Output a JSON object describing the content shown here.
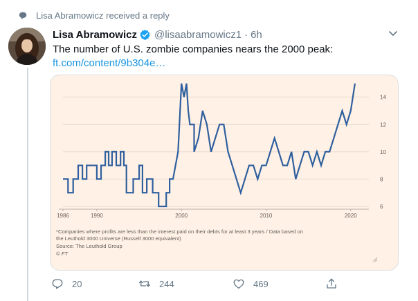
{
  "context": {
    "text": "Lisa Abramowicz received a reply",
    "icon": "speech-bubble-icon"
  },
  "tweet": {
    "author_name": "Lisa Abramowicz",
    "verified": true,
    "handle": "@lisaabramowicz1",
    "separator": "·",
    "time": "6h",
    "text": "The number of U.S. zombie companies nears the 2000 peak:",
    "link_text": "ft.com/content/9b304e…"
  },
  "colors": {
    "accent": "#1b95e0",
    "muted": "#657786",
    "chart_line": "#2e5f9e",
    "card_bg": "#fff1e5"
  },
  "chart_data": {
    "type": "line",
    "title": "",
    "xlabel": "",
    "ylabel": "",
    "x_ticks": [
      "1986",
      "1990",
      "2000",
      "2010",
      "2020"
    ],
    "y_ticks": [
      "6",
      "8",
      "10",
      "12",
      "14"
    ],
    "xlim": [
      1986,
      2021
    ],
    "ylim": [
      6,
      15.5
    ],
    "grid": true,
    "series": [
      {
        "values": [
          [
            1986,
            8
          ],
          [
            1986.6,
            8
          ],
          [
            1986.6,
            7
          ],
          [
            1987.2,
            7
          ],
          [
            1987.2,
            8
          ],
          [
            1987.8,
            8
          ],
          [
            1987.8,
            9
          ],
          [
            1988.3,
            9
          ],
          [
            1988.3,
            8
          ],
          [
            1988.8,
            8
          ],
          [
            1988.8,
            9
          ],
          [
            1990,
            9
          ],
          [
            1990,
            8
          ],
          [
            1990.5,
            8
          ],
          [
            1990.5,
            9
          ],
          [
            1991,
            9
          ],
          [
            1991,
            10
          ],
          [
            1991.4,
            10
          ],
          [
            1991.4,
            9
          ],
          [
            1991.8,
            9
          ],
          [
            1991.8,
            10
          ],
          [
            1992.3,
            10
          ],
          [
            1992.3,
            9
          ],
          [
            1992.8,
            9
          ],
          [
            1992.8,
            10
          ],
          [
            1993.2,
            10
          ],
          [
            1993.2,
            9
          ],
          [
            1993.5,
            9
          ],
          [
            1993.5,
            7
          ],
          [
            1994.3,
            7
          ],
          [
            1994.3,
            8
          ],
          [
            1995,
            8
          ],
          [
            1995,
            9
          ],
          [
            1995.4,
            9
          ],
          [
            1995.4,
            7
          ],
          [
            1995.9,
            7
          ],
          [
            1995.9,
            8
          ],
          [
            1996.6,
            8
          ],
          [
            1996.6,
            7
          ],
          [
            1997.3,
            7
          ],
          [
            1997.3,
            6
          ],
          [
            1998.2,
            6
          ],
          [
            1998.2,
            7
          ],
          [
            1998.6,
            7
          ],
          [
            1998.6,
            8
          ],
          [
            1999,
            8
          ],
          [
            1999.6,
            10
          ],
          [
            2000,
            15
          ],
          [
            2000.3,
            14
          ],
          [
            2000.6,
            15
          ],
          [
            2000.8,
            13
          ],
          [
            2001,
            12
          ],
          [
            2001.5,
            12
          ],
          [
            2001.5,
            10
          ],
          [
            2002,
            11
          ],
          [
            2002.5,
            13
          ],
          [
            2003,
            12
          ],
          [
            2003.5,
            10
          ],
          [
            2004,
            11
          ],
          [
            2004.5,
            12
          ],
          [
            2005,
            12
          ],
          [
            2005.5,
            10
          ],
          [
            2006,
            9
          ],
          [
            2006.5,
            8
          ],
          [
            2007,
            7
          ],
          [
            2007.5,
            8
          ],
          [
            2008,
            9
          ],
          [
            2008.5,
            9
          ],
          [
            2009,
            8
          ],
          [
            2009.5,
            9
          ],
          [
            2010,
            9
          ],
          [
            2010.5,
            10
          ],
          [
            2011,
            11
          ],
          [
            2011.5,
            10
          ],
          [
            2012,
            9
          ],
          [
            2012.5,
            9
          ],
          [
            2013,
            10
          ],
          [
            2013.5,
            8
          ],
          [
            2014,
            9
          ],
          [
            2014.5,
            10
          ],
          [
            2015,
            10
          ],
          [
            2015.5,
            9
          ],
          [
            2016,
            10
          ],
          [
            2016.5,
            9
          ],
          [
            2017,
            10
          ],
          [
            2017.5,
            10
          ],
          [
            2018,
            11
          ],
          [
            2018.5,
            12
          ],
          [
            2019,
            13
          ],
          [
            2019.5,
            12
          ],
          [
            2020,
            13
          ],
          [
            2020.5,
            15
          ]
        ]
      }
    ]
  },
  "footnote": {
    "line1": "*Companies where profits are less than the interest paid on their debts for at least 3 years / Data based on",
    "line2": "the Leuthold 3000 Universe (Russell 3000 equivalent)",
    "source": "Source: The Leuthold Group",
    "credit": "© FT"
  },
  "actions": {
    "reply_count": "20",
    "retweet_count": "244",
    "like_count": "469"
  }
}
